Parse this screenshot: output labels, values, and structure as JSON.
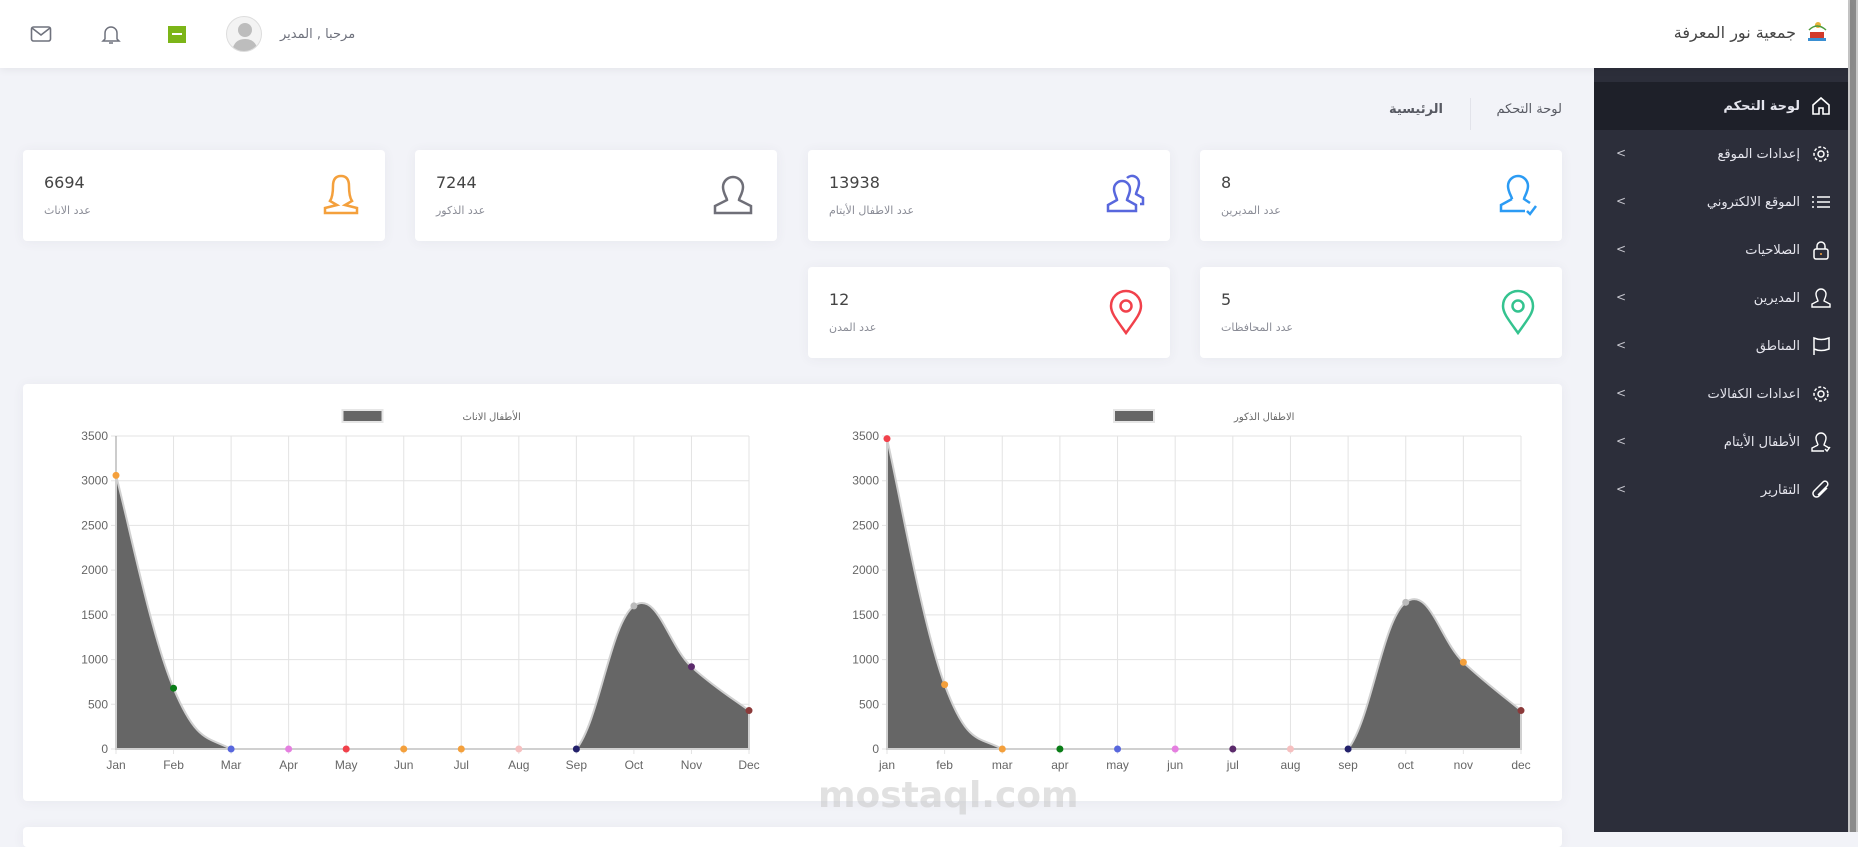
{
  "header": {
    "brand": "جمعية نور المعرفة",
    "greeting": "مرحبا , المدير",
    "icons": [
      "mail-icon",
      "bell-icon",
      "language-flag-icon",
      "avatar"
    ]
  },
  "sidebar": {
    "items": [
      {
        "label": "لوحة التحكم",
        "icon": "home-icon",
        "active": true
      },
      {
        "label": "إعدادات الموقع",
        "icon": "gear-icon"
      },
      {
        "label": "الموقع الالكتروني",
        "icon": "list-icon"
      },
      {
        "label": "الصلاحيات",
        "icon": "lock-icon"
      },
      {
        "label": "المديرين",
        "icon": "user-icon"
      },
      {
        "label": "المناطق",
        "icon": "flag-icon"
      },
      {
        "label": "اعدادات الكفالات",
        "icon": "gear-icon"
      },
      {
        "label": "الأطفال الأيتام",
        "icon": "user-check-icon"
      },
      {
        "label": "التقارير",
        "icon": "paperclip-icon"
      }
    ]
  },
  "breadcrumb": {
    "section": "لوحة التحكم",
    "current": "الرئيسية"
  },
  "stats": [
    {
      "value": "8",
      "label": "عدد المديرين",
      "icon": "user-check-icon",
      "color": "#2b9bf4"
    },
    {
      "value": "13938",
      "label": "عدد الاطفال الأيتام",
      "icon": "users-icon",
      "color": "#5867dd"
    },
    {
      "value": "7244",
      "label": "عدد الذكور",
      "icon": "user-icon",
      "color": "#6f6f78"
    },
    {
      "value": "6694",
      "label": "عدد الاناث",
      "icon": "female-user-icon",
      "color": "#f4a03c"
    },
    {
      "value": "5",
      "label": "عدد المحافظات",
      "icon": "map-pin-icon",
      "color": "#34c38f"
    },
    {
      "value": "12",
      "label": "عدد المدن",
      "icon": "map-pin-icon",
      "color": "#f1414b"
    }
  ],
  "chart_data": [
    {
      "type": "area",
      "legend": "الأطفال الاناث",
      "legend_position": "top",
      "categories": [
        "Jan",
        "Feb",
        "Mar",
        "Apr",
        "May",
        "Jun",
        "Jul",
        "Aug",
        "Sep",
        "Oct",
        "Nov",
        "Dec"
      ],
      "values": [
        3060,
        680,
        0,
        0,
        0,
        0,
        0,
        0,
        0,
        1600,
        920,
        430
      ],
      "point_colors": [
        "#f4a03c",
        "#0a7d17",
        "#5867dd",
        "#e57fe0",
        "#f1414b",
        "#f4a03c",
        "#f4a03c",
        "#f6c0c0",
        "#23216b",
        "#bbbbbb",
        "#5b2a6b",
        "#8b3a3a"
      ],
      "fill": "#666666",
      "ylim": [
        0,
        3500
      ],
      "yticks": [
        0,
        500,
        1000,
        1500,
        2000,
        2500,
        3000,
        3500
      ],
      "grid": true
    },
    {
      "type": "area",
      "legend": "الاطفال الذكور",
      "legend_position": "top",
      "categories": [
        "jan",
        "feb",
        "mar",
        "apr",
        "may",
        "jun",
        "jul",
        "aug",
        "sep",
        "oct",
        "nov",
        "dec"
      ],
      "values": [
        3470,
        720,
        0,
        0,
        0,
        0,
        0,
        0,
        0,
        1640,
        970,
        430
      ],
      "point_colors": [
        "#f1414b",
        "#f4a03c",
        "#f4a03c",
        "#0a7d17",
        "#5867dd",
        "#e57fe0",
        "#5b2a6b",
        "#f6c0c0",
        "#23216b",
        "#bbbbbb",
        "#f4a03c",
        "#8b3a3a"
      ],
      "fill": "#666666",
      "ylim": [
        0,
        3500
      ],
      "yticks": [
        0,
        500,
        1000,
        1500,
        2000,
        2500,
        3000,
        3500
      ],
      "grid": true
    }
  ],
  "watermark": "mostaql.com"
}
